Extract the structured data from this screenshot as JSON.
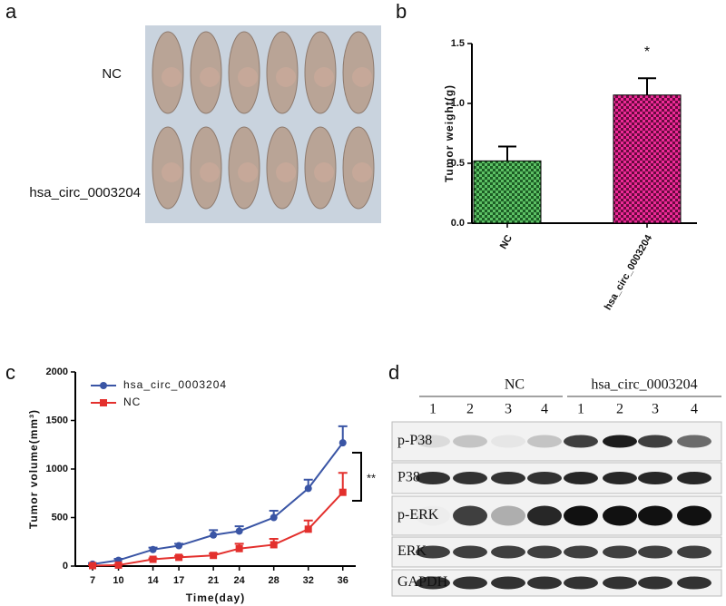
{
  "panel_labels": [
    "a",
    "b",
    "c",
    "d"
  ],
  "photo": {
    "rows": [
      "NC",
      "hsa_circ_0003204"
    ]
  },
  "chart_data": [
    {
      "type": "bar",
      "categories": [
        "NC",
        "hsa_circ_0003204"
      ],
      "values": [
        0.52,
        1.07
      ],
      "errors": [
        0.12,
        0.14
      ],
      "colors": [
        "#2f9a3c",
        "#c8157a"
      ],
      "ylabel": "Tumor weight(g)",
      "ylim": [
        0,
        1.5
      ],
      "yticks": [
        {
          "value": 0,
          "label": "0.0"
        },
        0.5,
        {
          "value": 1,
          "label": "1.0"
        },
        1.5
      ],
      "annotations": [
        "*"
      ]
    },
    {
      "type": "line",
      "x": [
        7,
        10,
        14,
        17,
        21,
        24,
        28,
        32,
        36
      ],
      "series": [
        {
          "name": "hsa_circ_0003204",
          "color": "#3a55a5",
          "values": [
            20,
            60,
            170,
            210,
            320,
            360,
            500,
            800,
            1270
          ],
          "errors": [
            10,
            15,
            20,
            20,
            50,
            50,
            70,
            90,
            170
          ]
        },
        {
          "name": "NC",
          "color": "#e3302d",
          "values": [
            5,
            10,
            70,
            90,
            110,
            180,
            220,
            380,
            760
          ],
          "errors": [
            5,
            5,
            10,
            15,
            20,
            50,
            60,
            90,
            200
          ]
        }
      ],
      "xlabel": "Time(day)",
      "ylabel": "Tumor volume(mm³)",
      "xlim": [
        5,
        37.5
      ],
      "xticks": [
        7,
        10,
        14,
        17,
        21,
        24,
        28,
        32,
        36
      ],
      "ylim": [
        0,
        2000
      ],
      "yticks": [
        0,
        500,
        1000,
        1500,
        2000
      ],
      "legend": "upper-left",
      "annotations": [
        "**"
      ]
    }
  ],
  "blot": {
    "groups": [
      "NC",
      "hsa_circ_0003204"
    ],
    "lanes": [
      "1",
      "2",
      "3",
      "4",
      "1",
      "2",
      "3",
      "4"
    ],
    "rows": [
      "p-P38",
      "P38",
      "p-ERK",
      "ERK",
      "GAPDH"
    ]
  }
}
